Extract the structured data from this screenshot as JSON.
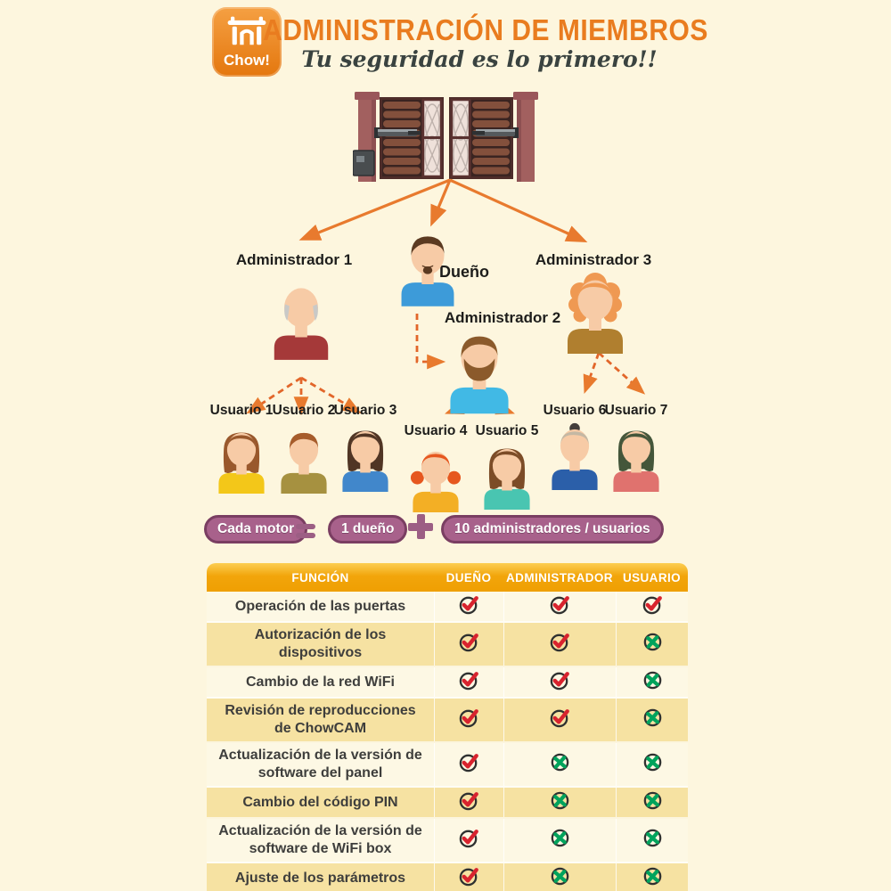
{
  "header": {
    "logo_text": "Chow!",
    "title": "ADMINISTRACIÓN DE MIEMBROS",
    "subtitle": "Tu seguridad es lo primero!!"
  },
  "hierarchy": {
    "owner": {
      "label": "Dueño",
      "style": "goatee",
      "hair": "#5B3A21",
      "shirt": "#3D9BD9"
    },
    "admins": [
      {
        "label": "Administrador 1",
        "style": "bald",
        "hair": "#C9C9C7",
        "shirt": "#A53939"
      },
      {
        "label": "Administrador 2",
        "style": "beard",
        "hair": "#8B5A2B",
        "shirt": "#41B9E5"
      },
      {
        "label": "Administrador 3",
        "style": "curly",
        "hair": "#EF9952",
        "shirt": "#B07F2F"
      }
    ],
    "users": [
      {
        "label": "Usuario 1",
        "style": "bob",
        "hair": "#99582C",
        "shirt": "#F3C719"
      },
      {
        "label": "Usuario 2",
        "style": "short",
        "hair": "#A65C2B",
        "shirt": "#A69140"
      },
      {
        "label": "Usuario 3",
        "style": "bob",
        "hair": "#503524",
        "shirt": "#4187CB"
      },
      {
        "label": "Usuario 4",
        "style": "pigtails",
        "hair": "#E6571F",
        "shirt": "#F3AF25"
      },
      {
        "label": "Usuario 5",
        "style": "bob",
        "hair": "#7C4C27",
        "shirt": "#49C5B1"
      },
      {
        "label": "Usuario 6",
        "style": "bun",
        "hair": "#C4B8A4",
        "bun": "#433E3A",
        "shirt": "#2B5FA9"
      },
      {
        "label": "Usuario 7",
        "style": "bob",
        "hair": "#44563A",
        "shirt": "#E0726E"
      }
    ]
  },
  "formula": {
    "left_pill": "Cada motor",
    "equals": "=",
    "term1_pill": "1 dueño",
    "plus": "+",
    "term2_pill": "10 administradores / usuarios"
  },
  "table": {
    "columns": [
      "FUNCIÓN",
      "DUEÑO",
      "ADMINISTRADOR",
      "USUARIO"
    ],
    "rows": [
      {
        "label": "Operación de las puertas",
        "dueno": "check",
        "administrador": "check",
        "usuario": "check"
      },
      {
        "label": "Autorización de los dispositivos",
        "dueno": "check",
        "administrador": "check",
        "usuario": "cross"
      },
      {
        "label": "Cambio de la red WiFi",
        "dueno": "check",
        "administrador": "check",
        "usuario": "cross"
      },
      {
        "label": "Revisión de reproducciones de ChowCAM",
        "dueno": "check",
        "administrador": "check",
        "usuario": "cross"
      },
      {
        "label": "Actualización de la versión de software del panel",
        "dueno": "check",
        "administrador": "cross",
        "usuario": "cross"
      },
      {
        "label": "Cambio del código PIN",
        "dueno": "check",
        "administrador": "cross",
        "usuario": "cross"
      },
      {
        "label": "Actualización de la versión de software de WiFi box",
        "dueno": "check",
        "administrador": "cross",
        "usuario": "cross"
      },
      {
        "label": "Ajuste de los parámetros",
        "dueno": "check",
        "administrador": "cross",
        "usuario": "cross"
      }
    ]
  },
  "colors": {
    "background": "#FDF6DE",
    "brand_orange": "#E9791E",
    "subtitle_dark": "#3A4340",
    "arrow_orange": "#E87A2E",
    "pill_purple": "#A8618B",
    "pill_border": "#7A3E62",
    "table_header_gold": "#F2A50B",
    "row_light": "#FDF8E4",
    "row_dark": "#F6E2A2",
    "check_red": "#D8232E",
    "cross_green": "#00A35C",
    "icon_ring": "#2F3130",
    "skin": "#F7CBA6"
  }
}
